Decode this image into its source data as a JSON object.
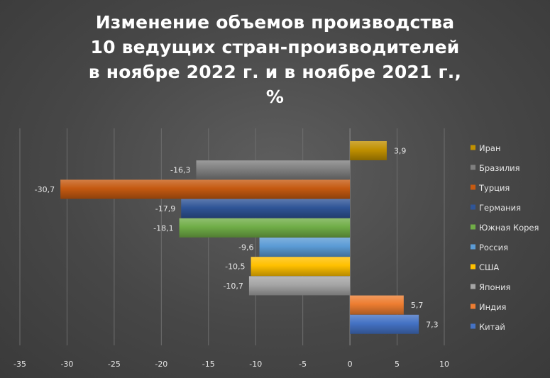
{
  "chart_data": {
    "type": "bar",
    "orientation": "horizontal",
    "title": "Изменение объемов производства\n10 ведущих стран-производителей\nв ноябре 2022 г. и в ноябре 2021 г.,\n%",
    "xlabel": "",
    "ylabel": "",
    "xlim": [
      -35,
      10
    ],
    "xticks": [
      "-35",
      "-30",
      "-25",
      "-20",
      "-15",
      "-10",
      "-5",
      "0",
      "5",
      "10"
    ],
    "grid": "vertical",
    "legend_position": "right",
    "series": [
      {
        "name": "Иран",
        "value": 3.9,
        "label": "3,9",
        "color": "#c09000"
      },
      {
        "name": "Бразилия",
        "value": -16.3,
        "label": "-16,3",
        "color": "#7f7f7f"
      },
      {
        "name": "Турция",
        "value": -30.7,
        "label": "-30,7",
        "color": "#c55a11"
      },
      {
        "name": "Германия",
        "value": -17.9,
        "label": "-17,9",
        "color": "#2f5597"
      },
      {
        "name": "Южная Корея",
        "value": -18.1,
        "label": "-18,1",
        "color": "#70ad47"
      },
      {
        "name": "Россия",
        "value": -9.6,
        "label": "-9,6",
        "color": "#5b9bd5"
      },
      {
        "name": "США",
        "value": -10.5,
        "label": "-10,5",
        "color": "#ffc000"
      },
      {
        "name": "Япония",
        "value": -10.7,
        "label": "-10,7",
        "color": "#a5a5a5"
      },
      {
        "name": "Индия",
        "value": 5.7,
        "label": "5,7",
        "color": "#ed7d31"
      },
      {
        "name": "Китай",
        "value": 7.3,
        "label": "7,3",
        "color": "#4472c4"
      }
    ]
  }
}
